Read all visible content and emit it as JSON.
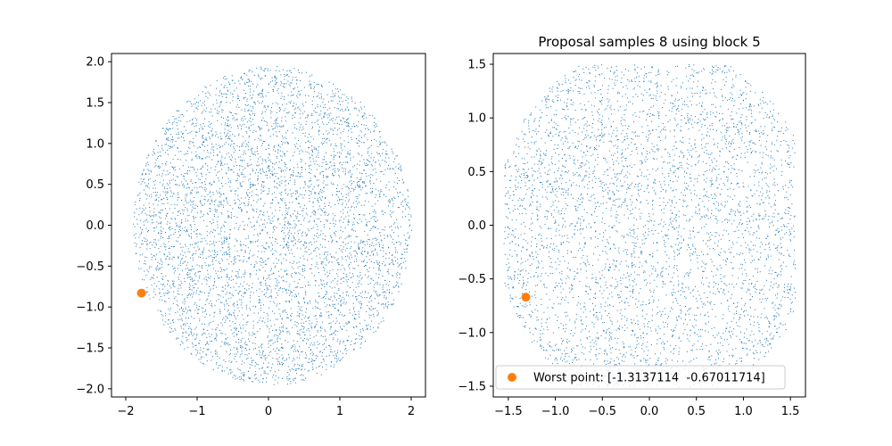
{
  "chart_data": [
    {
      "type": "scatter",
      "title": "",
      "xlabel": "",
      "ylabel": "",
      "xlim": [
        -2.2,
        2.2
      ],
      "ylim": [
        -2.1,
        2.1
      ],
      "xticks": [
        -2,
        -1,
        0,
        1,
        2
      ],
      "yticks": [
        -2.0,
        -1.5,
        -1.0,
        -0.5,
        0.0,
        0.5,
        1.0,
        1.5,
        2.0
      ],
      "xtick_labels": [
        "−2",
        "−1",
        "0",
        "1",
        "2"
      ],
      "ytick_labels": [
        "−2.0",
        "−1.5",
        "−1.0",
        "−0.5",
        "0.0",
        "0.5",
        "1.0",
        "1.5",
        "2.0"
      ],
      "grid": false,
      "series": [
        {
          "kind": "dense-cloud",
          "shape": "disc",
          "center": [
            0.05,
            0.0
          ],
          "radius": 1.95,
          "approx_points": 5200,
          "marker": "pixel",
          "color": "#1f77b4"
        },
        {
          "kind": "points",
          "values": [
            [
              -1.78,
              -0.83
            ]
          ],
          "marker": "circle",
          "color": "#ff7f0e"
        }
      ]
    },
    {
      "type": "scatter",
      "title": "Proposal samples 8 using block 5",
      "xlabel": "",
      "ylabel": "",
      "xlim": [
        -1.66,
        1.66
      ],
      "ylim": [
        -1.6,
        1.6
      ],
      "xticks": [
        -1.5,
        -1.0,
        -0.5,
        0.0,
        0.5,
        1.0,
        1.5
      ],
      "yticks": [
        -1.5,
        -1.0,
        -0.5,
        0.0,
        0.5,
        1.0,
        1.5
      ],
      "xtick_labels": [
        "−1.5",
        "−1.0",
        "−0.5",
        "0.0",
        "0.5",
        "1.0",
        "1.5"
      ],
      "ytick_labels": [
        "−1.5",
        "−1.0",
        "−0.5",
        "0.0",
        "0.5",
        "1.0",
        "1.5"
      ],
      "grid": false,
      "legend_position": "lower center",
      "series": [
        {
          "kind": "dense-cloud",
          "shape": "clipped-disc",
          "center": [
            0.05,
            0.0
          ],
          "radius": 1.7,
          "clip_x": [
            -1.55,
            1.55
          ],
          "clip_y": [
            -1.5,
            1.5
          ],
          "approx_points": 4300,
          "marker": "pixel",
          "color": "#1f77b4"
        },
        {
          "kind": "points",
          "name": "Worst point: [-1.3137114  -0.67011714]",
          "values": [
            [
              -1.3137114,
              -0.67011714
            ]
          ],
          "marker": "circle",
          "color": "#ff7f0e"
        }
      ]
    }
  ]
}
